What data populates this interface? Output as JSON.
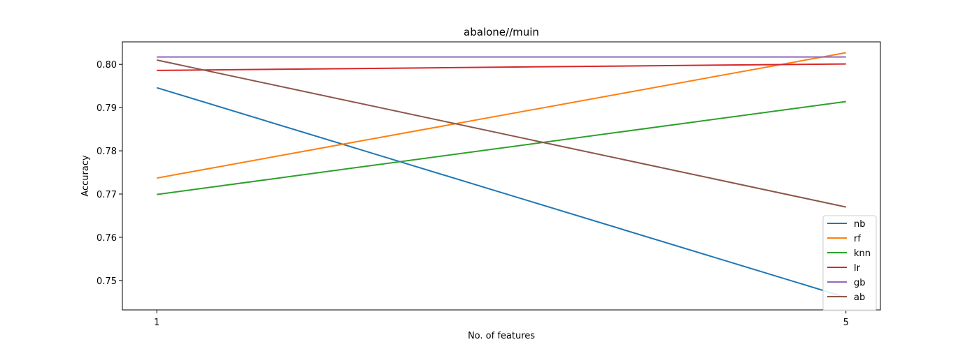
{
  "chart_data": {
    "type": "line",
    "title": "abalone//muin",
    "xlabel": "No. of features",
    "ylabel": "Accuracy",
    "x": [
      1,
      5
    ],
    "xticks": [
      "1",
      "5"
    ],
    "ylim": [
      0.7432,
      0.8052
    ],
    "yticks": [
      "0.75",
      "0.76",
      "0.77",
      "0.78",
      "0.79",
      "0.80"
    ],
    "grid": false,
    "legend_position": "lower-right",
    "series": [
      {
        "name": "nb",
        "color": "#1f77b4",
        "values": [
          0.7946,
          0.7461
        ]
      },
      {
        "name": "rf",
        "color": "#ff7f0e",
        "values": [
          0.7737,
          0.8027
        ]
      },
      {
        "name": "knn",
        "color": "#2ca02c",
        "values": [
          0.7699,
          0.7914
        ]
      },
      {
        "name": "lr",
        "color": "#d62728",
        "values": [
          0.7986,
          0.8001
        ]
      },
      {
        "name": "gb",
        "color": "#9467bd",
        "values": [
          0.8017,
          0.8017
        ]
      },
      {
        "name": "ab",
        "color": "#8c564b",
        "values": [
          0.801,
          0.767
        ]
      }
    ]
  }
}
